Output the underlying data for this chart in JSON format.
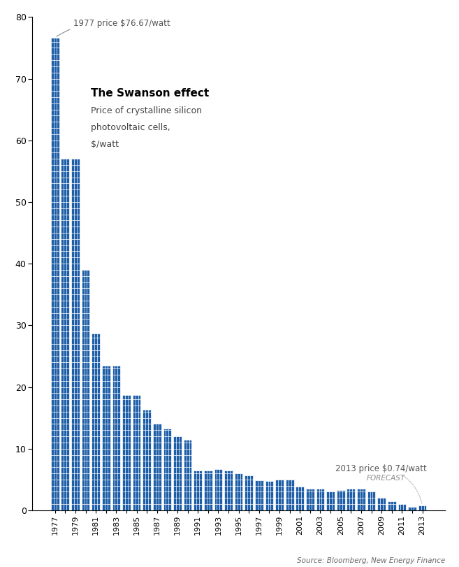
{
  "years": [
    1977,
    1978,
    1979,
    1980,
    1981,
    1982,
    1983,
    1984,
    1985,
    1986,
    1987,
    1988,
    1989,
    1990,
    1991,
    1992,
    1993,
    1994,
    1995,
    1996,
    1997,
    1998,
    1999,
    2000,
    2001,
    2002,
    2003,
    2004,
    2005,
    2006,
    2007,
    2008,
    2009,
    2010,
    2011,
    2012,
    2013
  ],
  "prices": [
    76.67,
    57.0,
    57.0,
    39.0,
    28.7,
    23.5,
    23.5,
    18.7,
    18.7,
    16.3,
    14.0,
    13.2,
    12.0,
    11.4,
    6.4,
    6.5,
    6.7,
    6.4,
    6.0,
    5.7,
    4.9,
    4.75,
    5.0,
    5.0,
    3.8,
    3.55,
    3.5,
    3.0,
    3.3,
    3.5,
    3.5,
    3.0,
    2.0,
    1.5,
    1.0,
    0.5,
    0.74
  ],
  "bar_color": "#1e5ea8",
  "bar_edge_color": "#ffffff",
  "background_color": "#ffffff",
  "title_bold": "The Swanson effect",
  "title_sub1": "Price of crystalline silicon",
  "title_sub2": "photovoltaic cells,",
  "title_sub3": "$/watt",
  "annotation_1977": "1977 price $76.67/watt",
  "annotation_2013_line1": "2013 price $0.74/watt",
  "annotation_2013_line2": "FORECAST",
  "source_text": "Source: Bloomberg, New Energy Finance",
  "ylim": [
    0,
    80
  ],
  "yticks": [
    0,
    10,
    20,
    30,
    40,
    50,
    60,
    70,
    80
  ]
}
